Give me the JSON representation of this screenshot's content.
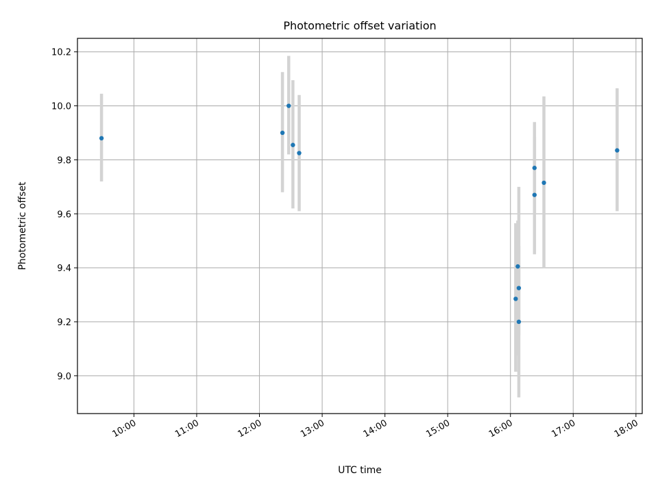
{
  "chart_data": {
    "type": "scatter",
    "title": "Photometric offset variation",
    "xlabel": "UTC time",
    "ylabel": "Photometric offset",
    "xlim": [
      "09:06",
      "18:06"
    ],
    "ylim": [
      8.86,
      10.25
    ],
    "grid": true,
    "x_ticks": [
      "10:00",
      "11:00",
      "12:00",
      "13:00",
      "14:00",
      "15:00",
      "16:00",
      "17:00",
      "18:00"
    ],
    "y_ticks": [
      "9.0",
      "9.2",
      "9.4",
      "9.6",
      "9.8",
      "10.0",
      "10.2"
    ],
    "series": [
      {
        "marker_color": "#1f77b4",
        "errorbar_color": "#d3d3d3",
        "points": [
          {
            "x": "09:29",
            "y": 9.88,
            "ylow": 9.72,
            "yhigh": 10.045
          },
          {
            "x": "12:22",
            "y": 9.9,
            "ylow": 9.68,
            "yhigh": 10.125
          },
          {
            "x": "12:28",
            "y": 10.0,
            "ylow": 9.82,
            "yhigh": 10.185
          },
          {
            "x": "12:32",
            "y": 9.855,
            "ylow": 9.62,
            "yhigh": 10.095
          },
          {
            "x": "12:38",
            "y": 9.825,
            "ylow": 9.61,
            "yhigh": 10.04
          },
          {
            "x": "16:05",
            "y": 9.285,
            "ylow": 9.015,
            "yhigh": 9.565
          },
          {
            "x": "16:07",
            "y": 9.405,
            "ylow": 9.075,
            "yhigh": 9.575
          },
          {
            "x": "16:08",
            "y": 9.325,
            "ylow": 9.15,
            "yhigh": 9.48
          },
          {
            "x": "16:08",
            "y": 9.2,
            "ylow": 8.92,
            "yhigh": 9.7
          },
          {
            "x": "16:23",
            "y": 9.67,
            "ylow": 9.45,
            "yhigh": 9.885
          },
          {
            "x": "16:23",
            "y": 9.77,
            "ylow": 9.6,
            "yhigh": 9.94
          },
          {
            "x": "16:32",
            "y": 9.715,
            "ylow": 9.4,
            "yhigh": 10.035
          },
          {
            "x": "17:42",
            "y": 9.835,
            "ylow": 9.61,
            "yhigh": 10.065
          }
        ]
      }
    ]
  }
}
